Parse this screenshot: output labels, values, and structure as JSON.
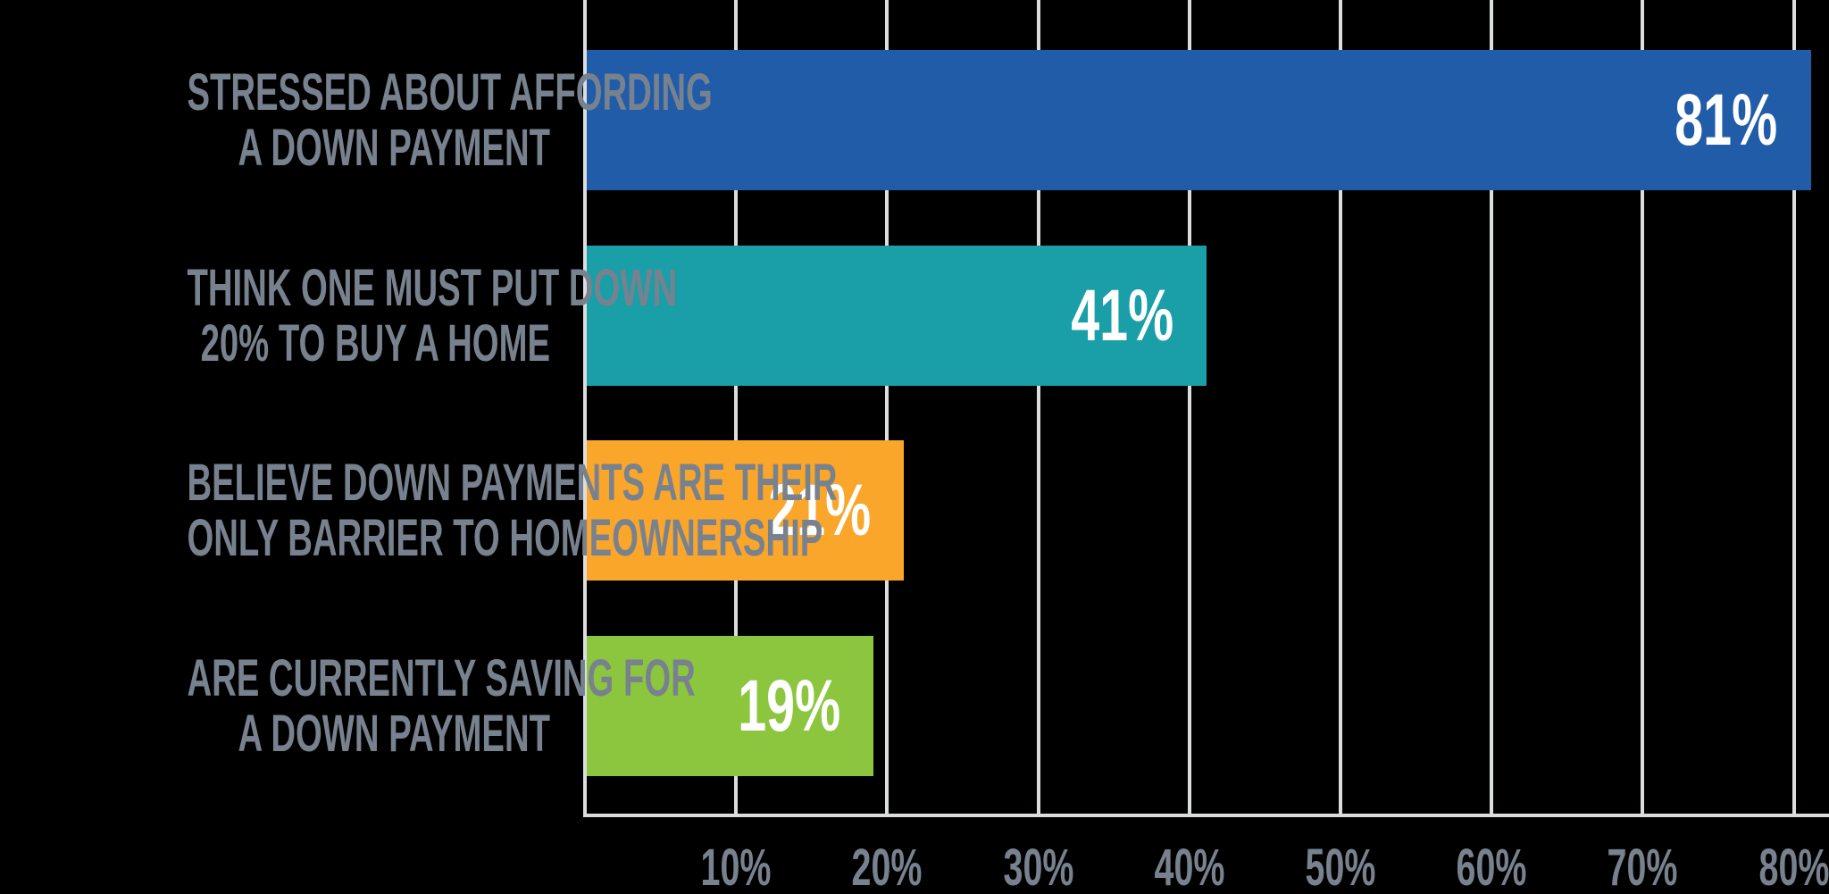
{
  "chart_data": {
    "type": "bar",
    "orientation": "horizontal",
    "title": "",
    "categories": [
      "STRESSED ABOUT AFFORDING A DOWN PAYMENT",
      "THINK ONE MUST PUT DOWN 20% TO BUY A HOME",
      "BELIEVE DOWN PAYMENTS ARE THEIR ONLY BARRIER TO HOMEOWNERSHIP",
      "ARE CURRENTLY SAVING FOR A DOWN PAYMENT"
    ],
    "values": [
      81,
      41,
      21,
      19
    ],
    "rows": [
      {
        "id": "stressed-about-affording-a-down-payment",
        "label_lines": [
          "STRESSED ABOUT AFFORDING",
          "A DOWN PAYMENT"
        ],
        "value": 81,
        "value_label": "81%",
        "color": "#215CA9"
      },
      {
        "id": "think-one-must-put-down-20-percent",
        "label_lines": [
          "THINK ONE MUST PUT DOWN",
          "20% TO BUY A HOME"
        ],
        "value": 41,
        "value_label": "41%",
        "color": "#1A9EA7"
      },
      {
        "id": "down-payments-only-barrier-to-homeownership",
        "label_lines": [
          "BELIEVE DOWN PAYMENTS ARE THEIR",
          "ONLY BARRIER TO HOMEOWNERSHIP"
        ],
        "value": 21,
        "value_label": "21%",
        "color": "#F9A62B"
      },
      {
        "id": "currently-saving-for-a-down-payment",
        "label_lines": [
          "ARE CURRENTLY SAVING FOR",
          "A DOWN PAYMENT"
        ],
        "value": 19,
        "value_label": "19%",
        "color": "#8CC63F"
      }
    ],
    "x_axis": {
      "min": 0,
      "max": 80,
      "unit": "%",
      "ticks": [
        {
          "value": 10,
          "label": "10%"
        },
        {
          "value": 20,
          "label": "20%"
        },
        {
          "value": 30,
          "label": "30%"
        },
        {
          "value": 40,
          "label": "40%"
        },
        {
          "value": 50,
          "label": "50%"
        },
        {
          "value": 60,
          "label": "60%"
        },
        {
          "value": 70,
          "label": "70%"
        },
        {
          "value": 80,
          "label": "80%"
        }
      ]
    },
    "grid": true,
    "legend": false,
    "colors": {
      "background": "#000000",
      "category_label_text": "#78828F",
      "tick_label_text": "#78828F",
      "gridline": "#DBDDDE",
      "axis_line": "#DBDDDE",
      "value_label_text": "#FFFFFF"
    }
  }
}
